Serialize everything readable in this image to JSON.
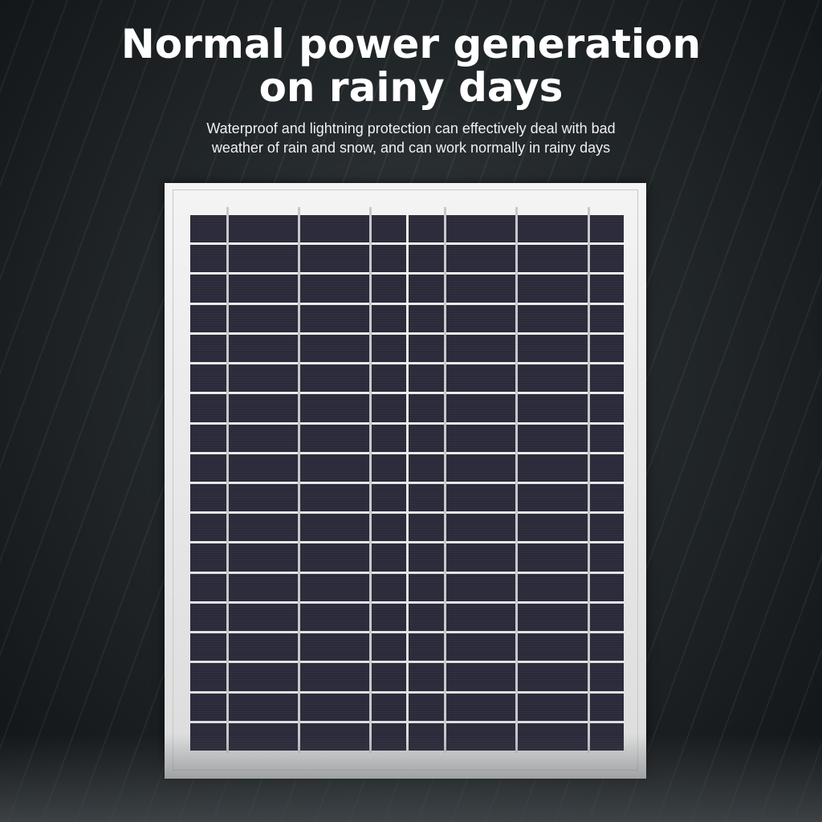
{
  "headline": {
    "line1": "Normal power generation",
    "line2": "on rainy days"
  },
  "subtitle": {
    "line1": "Waterproof and lightning protection can effectively deal with bad",
    "line2": "weather of rain and snow, and can work normally in rainy days"
  },
  "colors": {
    "background": "#22272a",
    "frame": "#e8e8e8",
    "cell": "#2c2c3c",
    "text": "#ffffff"
  }
}
